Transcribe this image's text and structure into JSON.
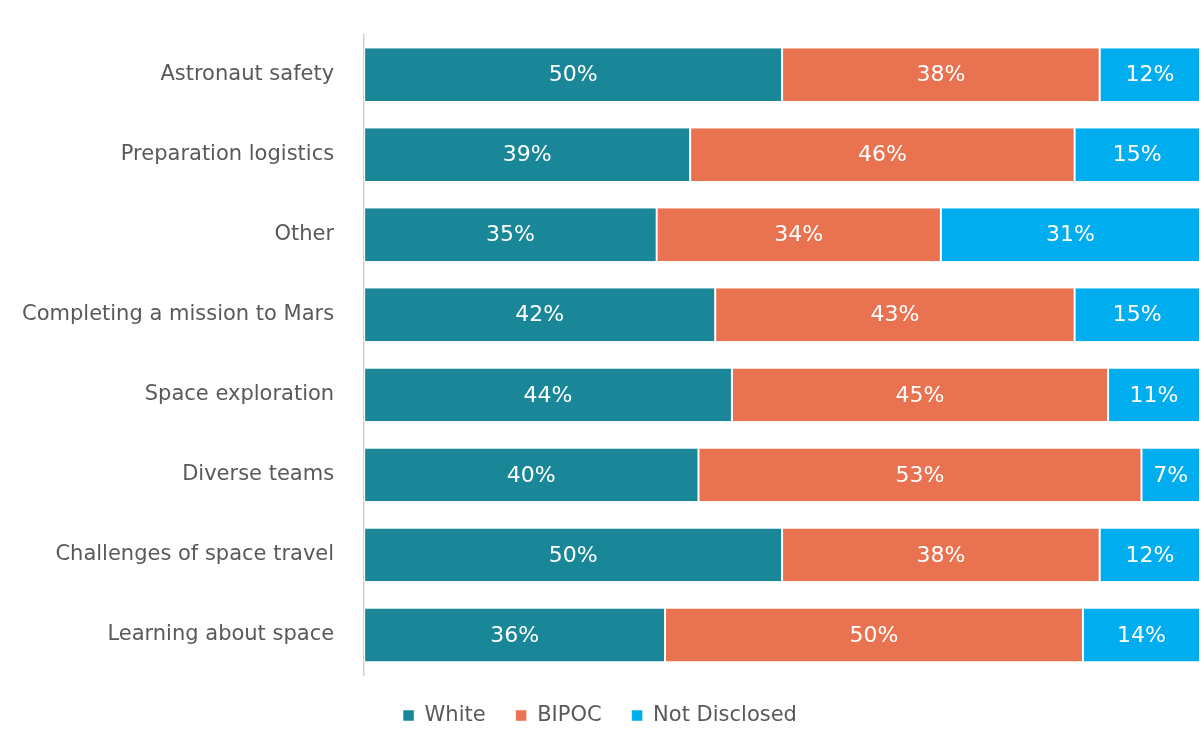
{
  "chart_data": {
    "type": "bar",
    "orientation": "horizontal",
    "stacked": true,
    "legend": "bottom",
    "tick_labels": "y",
    "categories": [
      "Astronaut safety",
      "Preparation logistics",
      "Other",
      "Completing a mission to Mars",
      "Space exploration",
      "Diverse teams",
      "Challenges of space travel",
      "Learning about space"
    ],
    "series": [
      {
        "name": "White",
        "color": "#1a8799",
        "values": [
          50,
          39,
          35,
          42,
          44,
          40,
          50,
          36
        ],
        "value_labels": [
          "50%",
          "39%",
          "35%",
          "42%",
          "44%",
          "40%",
          "50%",
          "36%"
        ]
      },
      {
        "name": "BIPOC",
        "color": "#e97351",
        "values": [
          38,
          46,
          34,
          43,
          45,
          53,
          38,
          50
        ],
        "value_labels": [
          "38%",
          "46%",
          "34%",
          "43%",
          "45%",
          "53%",
          "38%",
          "50%"
        ]
      },
      {
        "name": "Not Disclosed",
        "color": "#00adee",
        "values": [
          12,
          15,
          31,
          15,
          11,
          7,
          12,
          14
        ],
        "value_labels": [
          "12%",
          "15%",
          "31%",
          "15%",
          "11%",
          "7%",
          "12%",
          "14%"
        ]
      }
    ]
  }
}
